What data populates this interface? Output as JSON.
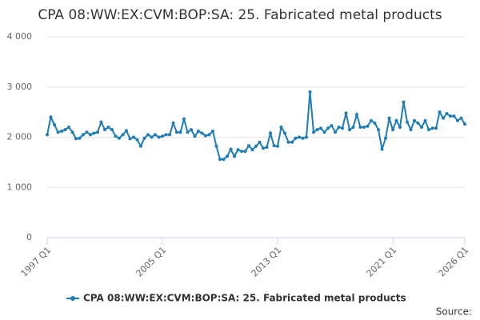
{
  "chart_data": {
    "type": "line",
    "title": "CPA 08:WW:EX:CVM:BOP:SA: 25. Fabricated metal products",
    "source_label": "Source:",
    "categories": [
      "1997 Q1",
      null,
      null,
      null,
      null,
      null,
      null,
      null,
      null,
      null,
      null,
      null,
      null,
      null,
      null,
      null,
      null,
      null,
      null,
      null,
      null,
      null,
      null,
      null,
      null,
      null,
      null,
      null,
      null,
      null,
      null,
      null,
      "2005 Q1",
      null,
      null,
      null,
      null,
      null,
      null,
      null,
      null,
      null,
      null,
      null,
      null,
      null,
      null,
      null,
      null,
      null,
      null,
      null,
      null,
      null,
      null,
      null,
      null,
      null,
      null,
      null,
      null,
      null,
      null,
      null,
      "2013 Q1",
      null,
      null,
      null,
      null,
      null,
      null,
      null,
      null,
      null,
      null,
      null,
      null,
      null,
      null,
      null,
      null,
      null,
      null,
      null,
      null,
      null,
      null,
      null,
      null,
      null,
      null,
      null,
      null,
      null,
      null,
      null,
      "2021 Q1",
      null,
      null,
      null,
      null,
      null,
      null,
      null,
      null,
      null,
      null,
      null,
      null,
      null,
      null,
      null,
      null,
      null,
      null,
      null,
      "2026 Q1"
    ],
    "series": [
      {
        "name": "CPA 08:WW:EX:CVM:BOP:SA: 25. Fabricated metal products",
        "color": "#1f7cb4",
        "values": [
          2050,
          2400,
          2250,
          2100,
          2120,
          2150,
          2200,
          2100,
          1970,
          1980,
          2050,
          2100,
          2050,
          2080,
          2100,
          2300,
          2150,
          2200,
          2150,
          2020,
          1980,
          2050,
          2130,
          1970,
          2000,
          1950,
          1820,
          1980,
          2050,
          2000,
          2050,
          2000,
          2020,
          2050,
          2050,
          2280,
          2100,
          2100,
          2360,
          2100,
          2150,
          2020,
          2120,
          2080,
          2030,
          2050,
          2120,
          1820,
          1560,
          1560,
          1620,
          1760,
          1620,
          1750,
          1720,
          1720,
          1830,
          1750,
          1820,
          1900,
          1780,
          1800,
          2080,
          1830,
          1820,
          2200,
          2080,
          1900,
          1900,
          1980,
          2000,
          1980,
          2000,
          2900,
          2100,
          2150,
          2180,
          2100,
          2180,
          2230,
          2100,
          2200,
          2180,
          2480,
          2150,
          2200,
          2450,
          2200,
          2200,
          2220,
          2330,
          2280,
          2150,
          1760,
          1980,
          2380,
          2150,
          2330,
          2200,
          2700,
          2300,
          2150,
          2330,
          2280,
          2200,
          2330,
          2150,
          2180,
          2180,
          2500,
          2380,
          2470,
          2420,
          2420,
          2330,
          2380,
          2260
        ]
      }
    ],
    "ylim": [
      0,
      4000
    ],
    "yticks": [
      0,
      {
        "value": 1000,
        "label": "1 000"
      },
      {
        "value": 2000,
        "label": "2 000"
      },
      {
        "value": 3000,
        "label": "3 000"
      },
      {
        "value": 4000,
        "label": "4 000"
      }
    ],
    "grid": true
  }
}
